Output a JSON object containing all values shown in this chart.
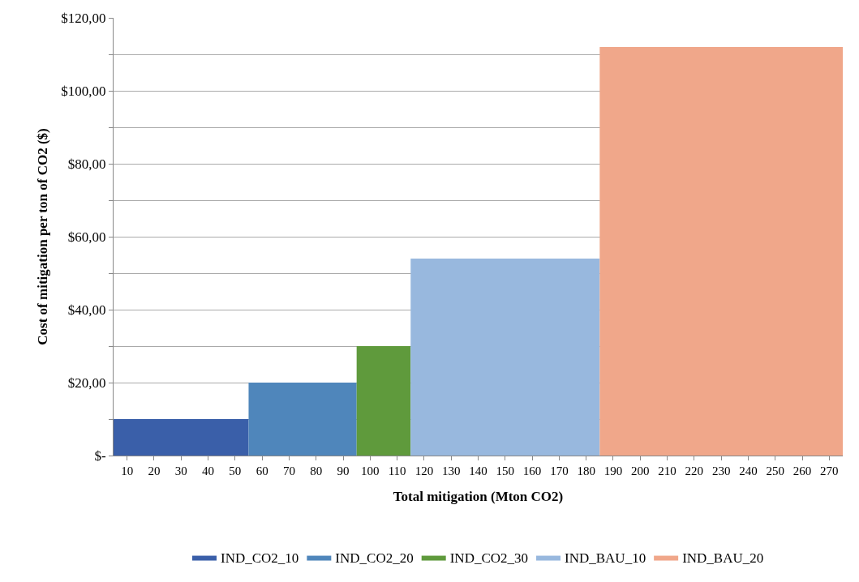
{
  "chart_data": {
    "type": "area",
    "xlabel": "Total mitigation (Mton CO2)",
    "ylabel": "Cost of mitigation per ton of CO2 ($)",
    "series": [
      {
        "name": "IND_CO2_10",
        "color": "#3a5fa9",
        "x": [
          5,
          55
        ],
        "values": [
          10,
          10
        ]
      },
      {
        "name": "IND_CO2_20",
        "color": "#4f86bb",
        "x": [
          55,
          95
        ],
        "values": [
          20,
          20
        ]
      },
      {
        "name": "IND_CO2_30",
        "color": "#5f9a3c",
        "x": [
          95,
          115
        ],
        "values": [
          30,
          30
        ]
      },
      {
        "name": "IND_BAU_10",
        "color": "#98b8de",
        "x": [
          115,
          185
        ],
        "values": [
          54,
          54
        ]
      },
      {
        "name": "IND_BAU_20",
        "color": "#f0a78a",
        "x": [
          185,
          275
        ],
        "values": [
          112,
          112
        ]
      }
    ],
    "xlim": [
      5,
      275
    ],
    "xticks": [
      10,
      20,
      30,
      40,
      50,
      60,
      70,
      80,
      90,
      100,
      110,
      120,
      130,
      140,
      150,
      160,
      170,
      180,
      190,
      200,
      210,
      220,
      230,
      240,
      250,
      260,
      270
    ],
    "ylim": [
      0,
      120
    ],
    "yticks": [
      {
        "value": 0,
        "label": "$-"
      },
      {
        "value": 10,
        "label": null
      },
      {
        "value": 20,
        "label": "$20,00"
      },
      {
        "value": 30,
        "label": null
      },
      {
        "value": 40,
        "label": "$40,00"
      },
      {
        "value": 50,
        "label": null
      },
      {
        "value": 60,
        "label": "$60,00"
      },
      {
        "value": 70,
        "label": null
      },
      {
        "value": 80,
        "label": "$80,00"
      },
      {
        "value": 90,
        "label": null
      },
      {
        "value": 100,
        "label": "$100,00"
      },
      {
        "value": 110,
        "label": null
      },
      {
        "value": 120,
        "label": "$120,00"
      }
    ],
    "grid": "y",
    "legend": "bottom"
  }
}
